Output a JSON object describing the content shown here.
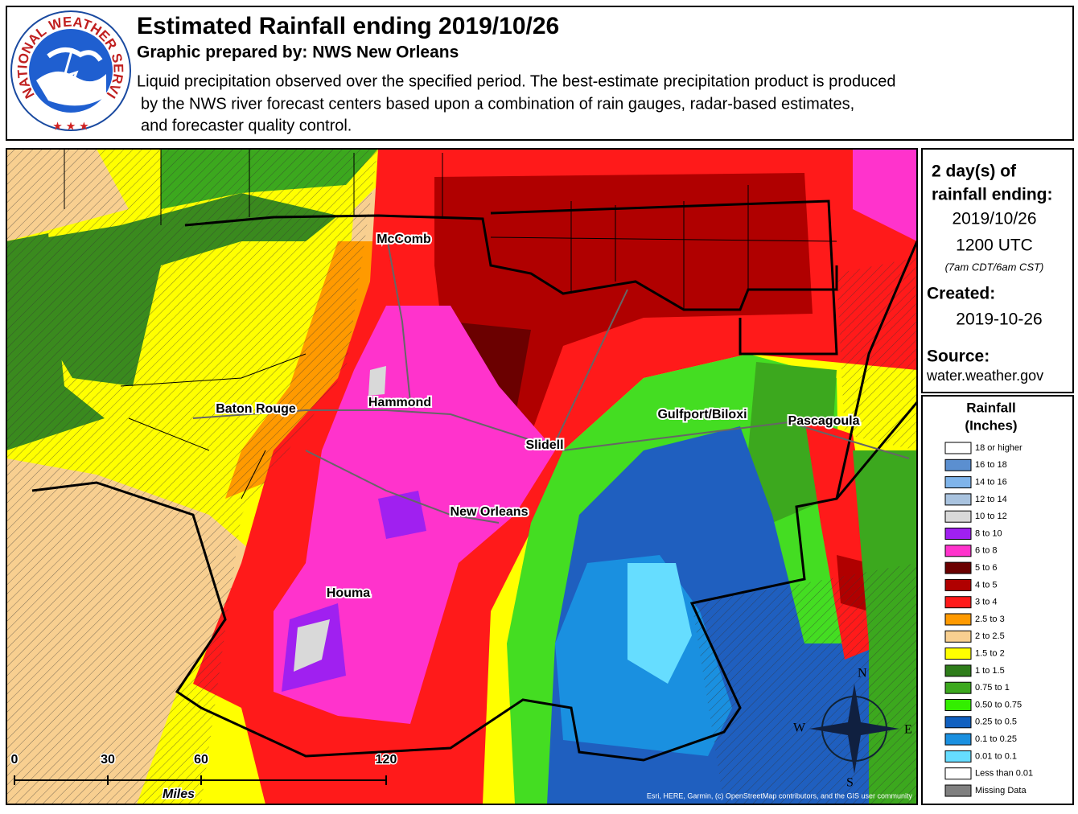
{
  "header": {
    "title": "Estimated Rainfall ending 2019/10/26",
    "subtitle": "Graphic prepared by: NWS New Orleans",
    "description": [
      "Liquid precipitation observed over the specified period.  The best-estimate precipitation product is produced",
      "by the NWS river forecast centers based upon a combination of rain gauges, radar-based estimates,",
      "and forecaster quality control."
    ],
    "logo_text": "NATIONAL WEATHER SERVICE"
  },
  "info": {
    "period_line1": "2 day(s) of",
    "period_line2": "rainfall ending:",
    "date": "2019/10/26",
    "time": "1200 UTC",
    "local_time": "(7am CDT/6am CST)",
    "created_label": "Created:",
    "created": "2019-10-26",
    "source_label": "Source:",
    "source": "water.weather.gov"
  },
  "legend": {
    "title_line1": "Rainfall",
    "title_line2": "(Inches)",
    "items": [
      {
        "label": "18 or higher",
        "color": "#ffffff"
      },
      {
        "label": "16 to 18",
        "color": "#5b8fd0"
      },
      {
        "label": "14 to 16",
        "color": "#7fb4ea"
      },
      {
        "label": "12 to 14",
        "color": "#a9c3df"
      },
      {
        "label": "10 to 12",
        "color": "#d9d9d9"
      },
      {
        "label": "8 to 10",
        "color": "#a020f0"
      },
      {
        "label": "6 to 8",
        "color": "#ff33cc"
      },
      {
        "label": "5 to 6",
        "color": "#6b0000"
      },
      {
        "label": "4 to 5",
        "color": "#b00000"
      },
      {
        "label": "3 to 4",
        "color": "#ff1a1a"
      },
      {
        "label": "2.5 to 3",
        "color": "#ff9a00"
      },
      {
        "label": "2 to 2.5",
        "color": "#f8cf90"
      },
      {
        "label": "1.5 to 2",
        "color": "#ffff00"
      },
      {
        "label": "1 to 1.5",
        "color": "#2e7d1a"
      },
      {
        "label": "0.75 to 1",
        "color": "#3ca81e"
      },
      {
        "label": "0.50 to 0.75",
        "color": "#33ee00"
      },
      {
        "label": "0.25 to 0.5",
        "color": "#1060c0"
      },
      {
        "label": "0.1 to 0.25",
        "color": "#1a90e0"
      },
      {
        "label": "0.01 to 0.1",
        "color": "#66ddff"
      },
      {
        "label": "Less than 0.01",
        "color": "#ffffff"
      },
      {
        "label": "Missing Data",
        "color": "#808080"
      }
    ]
  },
  "map": {
    "cities": [
      "McComb",
      "Hammond",
      "Baton Rouge",
      "Slidell",
      "Gulfport/Biloxi",
      "Pascagoula",
      "New Orleans",
      "Houma"
    ],
    "scale": [
      "0",
      "30",
      "60",
      "120"
    ],
    "scale_unit": "Miles",
    "compass": [
      "N",
      "E",
      "S",
      "W"
    ],
    "attribution": "Esri, HERE, Garmin, (c) OpenStreetMap contributors, and the GIS user community"
  }
}
